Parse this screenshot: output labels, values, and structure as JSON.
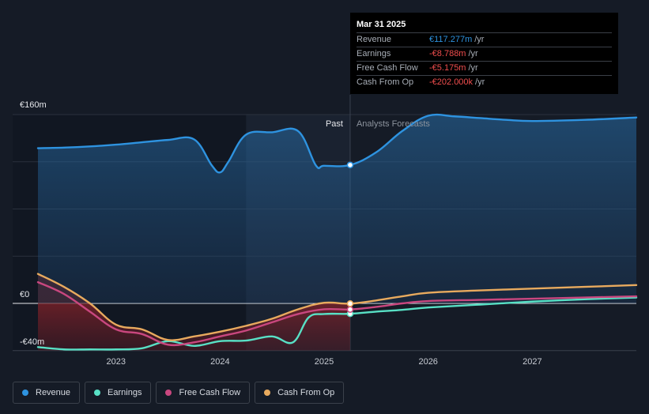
{
  "chart_data": {
    "type": "line",
    "y_unit_labels": {
      "top": "€160m",
      "zero": "€0",
      "bottom": "-€40m"
    },
    "ylim": [
      -40,
      160
    ],
    "xlim": [
      2022.25,
      2028.0
    ],
    "x_ticks": [
      2023,
      2024,
      2025,
      2026,
      2027
    ],
    "x_tick_labels": [
      "2023",
      "2024",
      "2025",
      "2026",
      "2027"
    ],
    "past_label": "Past",
    "forecast_label": "Analysts Forecasts",
    "divider_x": 2025.25,
    "series": [
      {
        "name": "Revenue",
        "color": "#2e93e0",
        "x": [
          2022.25,
          2022.5,
          2022.75,
          2023.0,
          2023.25,
          2023.5,
          2023.75,
          2023.92,
          2024.0,
          2024.08,
          2024.25,
          2024.5,
          2024.75,
          2024.92,
          2025.0,
          2025.25,
          2025.5,
          2025.75,
          2026.0,
          2026.25,
          2026.5,
          2026.75,
          2027.0,
          2027.5,
          2028.0
        ],
        "values": [
          131.5,
          132,
          133,
          134.5,
          136.5,
          138.5,
          139,
          117,
          111,
          120,
          143,
          145,
          146,
          117,
          116.6,
          117.277,
          128,
          146,
          159,
          158.5,
          157,
          155.5,
          154.5,
          155.5,
          157.5
        ]
      },
      {
        "name": "Earnings",
        "color": "#58e0c5",
        "x": [
          2022.25,
          2022.5,
          2022.75,
          2023.0,
          2023.25,
          2023.5,
          2023.75,
          2024.0,
          2024.25,
          2024.5,
          2024.7,
          2024.85,
          2025.0,
          2025.25,
          2025.5,
          2025.75,
          2026.0,
          2026.5,
          2027.0,
          2027.5,
          2028.0
        ],
        "values": [
          -37,
          -39,
          -39,
          -39,
          -38,
          -32,
          -36,
          -32,
          -31.5,
          -28,
          -33,
          -12,
          -9,
          -8.788,
          -7,
          -5.5,
          -3.5,
          -1,
          1.5,
          3.5,
          5
        ]
      },
      {
        "name": "Free Cash Flow",
        "color": "#c9477f",
        "x": [
          2022.25,
          2022.5,
          2022.75,
          2023.0,
          2023.25,
          2023.5,
          2023.75,
          2024.0,
          2024.25,
          2024.5,
          2024.75,
          2025.0,
          2025.25,
          2025.5,
          2025.75,
          2026.0,
          2026.5,
          2027.0,
          2027.5,
          2028.0
        ],
        "values": [
          18,
          8,
          -7,
          -22,
          -26,
          -35,
          -33,
          -28,
          -23,
          -16,
          -9,
          -5,
          -5.175,
          -3,
          0,
          2,
          3,
          4,
          5,
          6
        ]
      },
      {
        "name": "Cash From Op",
        "color": "#e8aa5e",
        "x": [
          2022.25,
          2022.5,
          2022.75,
          2023.0,
          2023.25,
          2023.5,
          2023.75,
          2024.0,
          2024.25,
          2024.5,
          2024.75,
          2025.0,
          2025.25,
          2025.5,
          2025.75,
          2026.0,
          2026.5,
          2027.0,
          2027.5,
          2028.0
        ],
        "values": [
          25,
          14,
          0,
          -18,
          -22,
          -31,
          -28,
          -24,
          -19,
          -13,
          -5,
          0.5,
          -0.202,
          2.5,
          6,
          9,
          11,
          12.5,
          14,
          15.5
        ]
      }
    ],
    "grid": true,
    "legend_position": "bottom-left"
  },
  "tooltip": {
    "date": "Mar 31 2025",
    "rows": [
      {
        "label": "Revenue",
        "value": "€117.277m",
        "unit": "/yr",
        "color": "#2e93e0"
      },
      {
        "label": "Earnings",
        "value": "-€8.788m",
        "unit": "/yr",
        "color": "#ef4d4d"
      },
      {
        "label": "Free Cash Flow",
        "value": "-€5.175m",
        "unit": "/yr",
        "color": "#ef4d4d"
      },
      {
        "label": "Cash From Op",
        "value": "-€202.000k",
        "unit": "/yr",
        "color": "#ef4d4d"
      }
    ]
  },
  "legend": [
    {
      "label": "Revenue",
      "color": "#2e93e0"
    },
    {
      "label": "Earnings",
      "color": "#58e0c5"
    },
    {
      "label": "Free Cash Flow",
      "color": "#c9477f"
    },
    {
      "label": "Cash From Op",
      "color": "#e8aa5e"
    }
  ]
}
